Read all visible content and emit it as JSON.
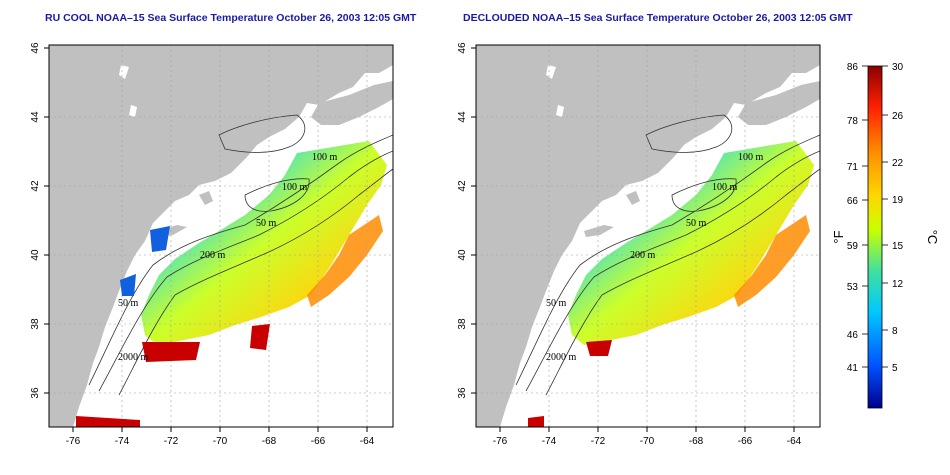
{
  "maps": [
    {
      "title": "RU COOL NOAA–15 Sea Surface Temperature October 26, 2003 12:05 GMT",
      "contour_labels": [
        "100 m",
        "100 m",
        "50 m",
        "200 m",
        "50 m",
        "2000 m"
      ]
    },
    {
      "title": "DECLOUDED NOAA–15 Sea Surface Temperature October 26, 2003 12:05 GMT",
      "contour_labels": [
        "100 m",
        "100 m",
        "50 m",
        "200 m",
        "50 m",
        "2000 m"
      ]
    }
  ],
  "axes": {
    "lat_ticks": [
      "36",
      "38",
      "40",
      "42",
      "44",
      "46"
    ],
    "lon_ticks": [
      "-76",
      "-74",
      "-72",
      "-70",
      "-68",
      "-66",
      "-64"
    ]
  },
  "colorbar": {
    "fahrenheit_ticks": [
      "86",
      "78",
      "71",
      "66",
      "59",
      "53",
      "46",
      "41"
    ],
    "celsius_ticks": [
      "30",
      "26",
      "22",
      "19",
      "15",
      "12",
      "8",
      "5"
    ],
    "f_label": "°F",
    "c_label": "°C",
    "colors": [
      "#00008b",
      "#0050ff",
      "#00c8ff",
      "#40e0a0",
      "#c8ff00",
      "#ffd700",
      "#ff8c00",
      "#ff2000",
      "#8b0000"
    ]
  },
  "colors": {
    "land": "#c0c0c0",
    "ocean": "#ffffff",
    "title": "#1a1aa6",
    "grid": "#a0a0a0"
  }
}
